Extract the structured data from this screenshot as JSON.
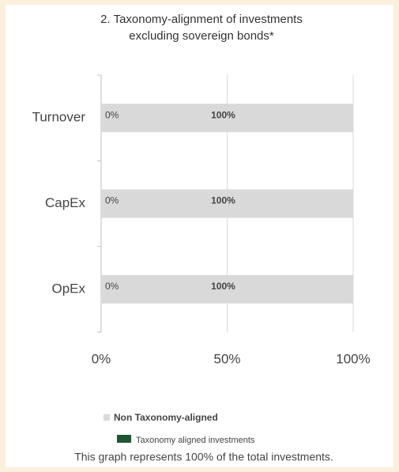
{
  "chart_data": {
    "type": "stacked_bar_horizontal",
    "title": "2. Taxonomy-alignment of investments excluding sovereign bonds*",
    "categories": [
      "Turnover",
      "CapEx",
      "OpEx"
    ],
    "series": [
      {
        "name": "Taxonomy aligned investments",
        "color": "#1e5631",
        "values": [
          0,
          0,
          0
        ],
        "value_labels": [
          "0%",
          "0%",
          "0%"
        ]
      },
      {
        "name": "Non Taxonomy-aligned",
        "color": "#d9d9d9",
        "values": [
          100,
          100,
          100
        ],
        "value_labels": [
          "100%",
          "100%",
          "100%"
        ]
      }
    ],
    "xlim": [
      0,
      100
    ],
    "xticks": [
      {
        "value": 0,
        "label": "0%"
      },
      {
        "value": 50,
        "label": "50%"
      },
      {
        "value": 100,
        "label": "100%"
      }
    ],
    "grid": true,
    "footnote": "This graph represents 100% of the total investments."
  }
}
